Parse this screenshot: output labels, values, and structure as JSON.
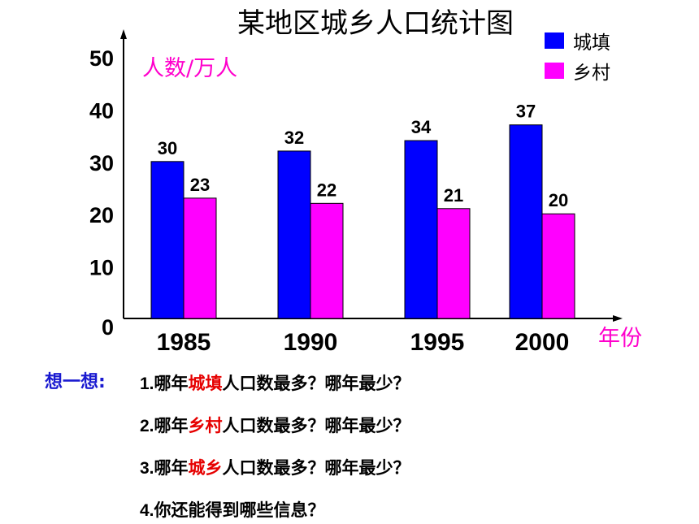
{
  "chart_data": {
    "type": "bar",
    "title": "某地区城乡人口统计图",
    "ylabel": "人数/万人",
    "xlabel": "年份",
    "categories": [
      "1985",
      "1990",
      "1995",
      "2000"
    ],
    "series": [
      {
        "name": "城填",
        "color": "#0000ff",
        "values": [
          30,
          32,
          34,
          37
        ]
      },
      {
        "name": "乡村",
        "color": "#ff00ff",
        "values": [
          23,
          22,
          21,
          20
        ]
      }
    ],
    "ylim": [
      0,
      50
    ],
    "yticks": [
      "0",
      "10",
      "20",
      "30",
      "40",
      "50"
    ],
    "grid": false,
    "legend": "top-right"
  },
  "colors": {
    "unit_label": "#ff00cc",
    "think_label": "#1a1ad0",
    "highlight": "#e60000"
  },
  "questions": {
    "label": "想一想:",
    "items": [
      {
        "num": "1.",
        "pre": "哪年",
        "hl": "城填",
        "post": "人口数最多？哪年最少？"
      },
      {
        "num": "2.",
        "pre": "哪年",
        "hl": "乡村",
        "post": "人口数最多？哪年最少？"
      },
      {
        "num": "3.",
        "pre": "哪年",
        "hl": "城乡",
        "post": "人口数最多？哪年最少？"
      },
      {
        "num": "4.",
        "pre": "你还能得到哪些信息？",
        "hl": "",
        "post": ""
      }
    ]
  }
}
